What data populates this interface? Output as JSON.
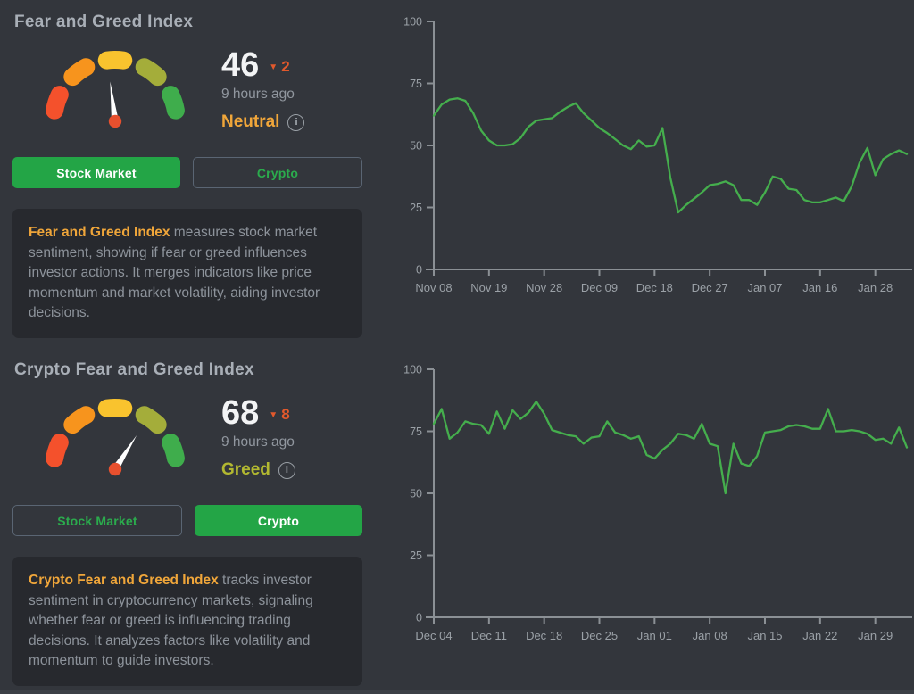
{
  "colors": {
    "background": "#33363c",
    "card": "#27292e",
    "title_gray": "#a9afb7",
    "body_gray": "#8d939b",
    "muted_gray": "#91979f",
    "value_white": "#f3f4f5",
    "accent_green": "#23a546",
    "accent_green_text": "#2bab4d",
    "button_border": "#5a6573",
    "orange_highlight": "#f0a63a",
    "change_down": "#e2592c",
    "axis": "#8b9095",
    "tick_text": "#9ba1a7",
    "gauge_segments": [
      "#f4512c",
      "#f7941d",
      "#f9c32e",
      "#a4ad3a",
      "#3fad4c"
    ],
    "needle": "#ffffff",
    "pivot": "#e8502e"
  },
  "widgets": [
    {
      "title": "Fear and Greed Index",
      "value": "46",
      "change": "2",
      "change_direction": "down",
      "updated": "9 hours ago",
      "label": "Neutral",
      "label_color": "#f0a63a",
      "gauge_value": 46,
      "buttons": [
        {
          "label": "Stock Market",
          "active": true
        },
        {
          "label": "Crypto",
          "active": false
        }
      ],
      "description_highlight": "Fear and Greed Index",
      "description_rest": " measures stock market sentiment, showing if fear or greed influences investor actions. It merges indicators like price momentum and market volatility, aiding investor decisions."
    },
    {
      "title": "Crypto Fear and Greed Index",
      "value": "68",
      "change": "8",
      "change_direction": "down",
      "updated": "9 hours ago",
      "label": "Greed",
      "label_color": "#b2b831",
      "gauge_value": 68,
      "buttons": [
        {
          "label": "Stock Market",
          "active": false
        },
        {
          "label": "Crypto",
          "active": true
        }
      ],
      "description_highlight": "Crypto Fear and Greed Index",
      "description_rest": " tracks investor sentiment in cryptocurrency markets, signaling whether fear or greed is influencing trading decisions. It analyzes factors like volatility and momentum to guide investors."
    }
  ],
  "chart_data": [
    {
      "type": "line",
      "title": "Stock market Fear and Greed Index history",
      "line_color": "#45ae4d",
      "ylim": [
        0,
        100
      ],
      "y_ticks": [
        0,
        25,
        50,
        75,
        100
      ],
      "x_tick_labels": [
        "Nov 08",
        "Nov 19",
        "Nov 28",
        "Dec 09",
        "Dec 18",
        "Dec 27",
        "Jan 07",
        "Jan 16",
        "Jan 28"
      ],
      "tick_interval": 7,
      "grid": false,
      "legend": "none",
      "values": [
        62,
        66.5,
        68.5,
        69,
        68,
        63,
        56,
        52,
        50,
        50,
        50.5,
        53,
        57.5,
        60,
        60.5,
        61,
        63.5,
        65.5,
        67,
        63,
        60,
        57,
        55,
        52.5,
        50,
        48.5,
        52,
        49.5,
        50,
        57,
        37,
        23,
        26,
        28.5,
        31,
        34,
        34.5,
        35.5,
        34,
        28,
        28,
        26,
        31,
        37.5,
        36.5,
        32.5,
        32,
        28,
        27,
        27,
        28,
        29,
        27.5,
        33.5,
        43,
        49,
        38,
        44.5,
        46.5,
        48,
        46.5
      ]
    },
    {
      "type": "line",
      "title": "Crypto Fear and Greed Index history",
      "line_color": "#45ae4d",
      "ylim": [
        0,
        100
      ],
      "y_ticks": [
        0,
        25,
        50,
        75,
        100
      ],
      "x_tick_labels": [
        "Dec 04",
        "Dec 11",
        "Dec 18",
        "Dec 25",
        "Jan 01",
        "Jan 08",
        "Jan 15",
        "Jan 22",
        "Jan 29"
      ],
      "tick_interval": 7,
      "grid": false,
      "legend": "none",
      "values": [
        78,
        84,
        72,
        74.5,
        79,
        78,
        77.5,
        74,
        83,
        76,
        83.5,
        80,
        82.5,
        87,
        82,
        75.5,
        74.5,
        73.5,
        73,
        70,
        72.5,
        73,
        79,
        74.5,
        73.5,
        72,
        73,
        65.5,
        64,
        67.5,
        70,
        74,
        73.5,
        72,
        78,
        70,
        69,
        50,
        70,
        62,
        61,
        65,
        74.5,
        75,
        75.5,
        77,
        77.5,
        77,
        76,
        76,
        84,
        75,
        75,
        75.5,
        75,
        74,
        71.5,
        72,
        70,
        76.5,
        68.5
      ]
    }
  ]
}
